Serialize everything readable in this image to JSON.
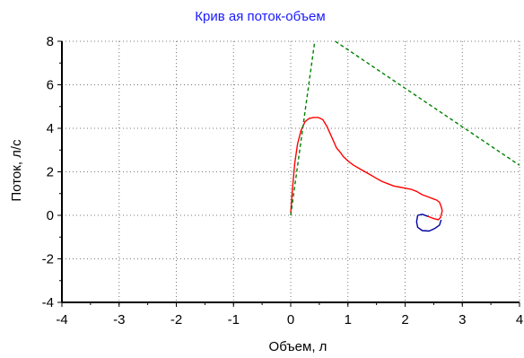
{
  "chart_data": {
    "type": "line",
    "title": "Крив ая поток-объем",
    "xlabel": "Объем, л",
    "ylabel": "Поток, л/с",
    "xlim": [
      -4,
      4
    ],
    "ylim": [
      -4,
      8
    ],
    "xticks": [
      "-4",
      "-3",
      "-2",
      "-1",
      "0",
      "1",
      "2",
      "3",
      "4"
    ],
    "yticks": [
      "-4",
      "-2",
      "0",
      "2",
      "4",
      "6",
      "8"
    ],
    "grid": true,
    "series": [
      {
        "color": "#ff0000",
        "style": "solid",
        "x": [
          0.0,
          0.03,
          0.07,
          0.12,
          0.18,
          0.25,
          0.32,
          0.4,
          0.48,
          0.56,
          0.63,
          0.7,
          0.75,
          0.8,
          0.85,
          0.88,
          0.92,
          1.0,
          1.1,
          1.2,
          1.3,
          1.4,
          1.5,
          1.6,
          1.7,
          1.8,
          1.9,
          2.0,
          2.1,
          2.2,
          2.3,
          2.4,
          2.5,
          2.55,
          2.6,
          2.63,
          2.65,
          2.62,
          2.58,
          2.5,
          2.4
        ],
        "y": [
          0.1,
          1.2,
          2.4,
          3.3,
          3.9,
          4.3,
          4.45,
          4.5,
          4.5,
          4.4,
          4.1,
          3.7,
          3.4,
          3.1,
          2.95,
          2.85,
          2.7,
          2.5,
          2.3,
          2.15,
          2.0,
          1.85,
          1.7,
          1.55,
          1.45,
          1.35,
          1.3,
          1.25,
          1.2,
          1.1,
          0.95,
          0.85,
          0.75,
          0.7,
          0.6,
          0.4,
          0.2,
          -0.1,
          -0.2,
          -0.15,
          -0.05
        ]
      },
      {
        "color": "#0000a0",
        "style": "solid",
        "x": [
          2.4,
          2.3,
          2.22,
          2.2,
          2.22,
          2.3,
          2.42,
          2.52,
          2.6,
          2.63
        ],
        "y": [
          -0.05,
          0.05,
          0.0,
          -0.3,
          -0.55,
          -0.7,
          -0.72,
          -0.6,
          -0.45,
          -0.2
        ]
      },
      {
        "color": "#008000",
        "style": "dashed",
        "x": [
          0.0,
          0.42
        ],
        "y": [
          0.0,
          8.0
        ]
      },
      {
        "color": "#008000",
        "style": "dashed",
        "x": [
          0.78,
          4.0
        ],
        "y": [
          8.0,
          2.3
        ]
      }
    ]
  }
}
